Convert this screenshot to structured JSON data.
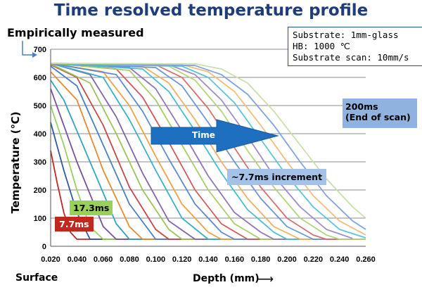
{
  "header": {
    "title": "Time resolved temperature profile",
    "empirical": "Empirically  measured"
  },
  "info_box": {
    "line1": "Substrate: 1mm-glass",
    "line2": "HB: 1000 ℃",
    "line3": "Substrate scan: 10mm/s"
  },
  "annotations": {
    "end_scan_1": "200ms",
    "end_scan_2": "(End of scan)",
    "increment": "~7.7ms increment",
    "time": "Time",
    "label_17": "17.3ms",
    "label_7": "7.7ms"
  },
  "footer": {
    "surface": "Surface",
    "depth": "Depth (mm)"
  },
  "chart_data": {
    "type": "line",
    "title": "Time resolved temperature profile",
    "xlabel": "Depth (mm)",
    "ylabel": "Temperature (℃)",
    "xlim": [
      0.02,
      0.26
    ],
    "ylim": [
      0,
      700
    ],
    "x_ticks": [
      "0.020",
      "0.040",
      "0.060",
      "0.080",
      "0.100",
      "0.120",
      "0.140",
      "0.160",
      "0.180",
      "0.200",
      "0.220",
      "0.240",
      "0.260"
    ],
    "y_ticks": [
      "0",
      "100",
      "200",
      "300",
      "400",
      "500",
      "600",
      "700"
    ],
    "grid": "horizontal",
    "baseline_temperature": 25,
    "peak_temperature": 650,
    "series_note": "curves at ~7.7ms increments from 7.7ms to 200ms",
    "series": [
      {
        "name": "7.7ms",
        "color": "#c0281f",
        "x": [
          0.02,
          0.025,
          0.03,
          0.035,
          0.04
        ],
        "y": [
          340,
          225,
          120,
          50,
          25
        ]
      },
      {
        "name": "",
        "color": "#2e5a9c",
        "x": [
          0.02,
          0.03,
          0.04,
          0.05
        ],
        "y": [
          440,
          270,
          120,
          25
        ]
      },
      {
        "name": "17.3ms",
        "color": "#99d05a",
        "x": [
          0.02,
          0.03,
          0.04,
          0.05,
          0.06
        ],
        "y": [
          500,
          360,
          200,
          70,
          25
        ]
      },
      {
        "name": "",
        "color": "#7a4e9c",
        "x": [
          0.02,
          0.04,
          0.06,
          0.07
        ],
        "y": [
          560,
          300,
          70,
          25
        ]
      },
      {
        "name": "",
        "color": "#34a3bd",
        "x": [
          0.02,
          0.03,
          0.05,
          0.07,
          0.08
        ],
        "y": [
          590,
          520,
          300,
          80,
          25
        ]
      },
      {
        "name": "",
        "color": "#e88b2e",
        "x": [
          0.02,
          0.04,
          0.06,
          0.08,
          0.09
        ],
        "y": [
          620,
          520,
          270,
          70,
          25
        ]
      },
      {
        "name": "",
        "color": "#4a7ec2",
        "x": [
          0.02,
          0.04,
          0.06,
          0.08,
          0.1
        ],
        "y": [
          640,
          570,
          360,
          150,
          25
        ]
      },
      {
        "name": "",
        "color": "#c54848",
        "x": [
          0.02,
          0.04,
          0.06,
          0.08,
          0.1,
          0.11
        ],
        "y": [
          645,
          600,
          430,
          210,
          60,
          25
        ]
      },
      {
        "name": "",
        "color": "#9bc45a",
        "x": [
          0.02,
          0.05,
          0.07,
          0.09,
          0.11,
          0.12
        ],
        "y": [
          648,
          580,
          400,
          200,
          60,
          25
        ]
      },
      {
        "name": "",
        "color": "#8066a8",
        "x": [
          0.02,
          0.05,
          0.07,
          0.09,
          0.11,
          0.13
        ],
        "y": [
          650,
          610,
          460,
          260,
          90,
          25
        ]
      },
      {
        "name": "",
        "color": "#3ab0c8",
        "x": [
          0.02,
          0.06,
          0.08,
          0.1,
          0.12,
          0.14
        ],
        "y": [
          650,
          600,
          450,
          270,
          100,
          25
        ]
      },
      {
        "name": "",
        "color": "#f0a045",
        "x": [
          0.02,
          0.06,
          0.08,
          0.1,
          0.12,
          0.14,
          0.15
        ],
        "y": [
          650,
          620,
          500,
          320,
          150,
          50,
          25
        ]
      },
      {
        "name": "",
        "color": "#5b8ad0",
        "x": [
          0.02,
          0.07,
          0.09,
          0.11,
          0.13,
          0.15,
          0.16
        ],
        "y": [
          650,
          610,
          480,
          310,
          150,
          50,
          25
        ]
      },
      {
        "name": "",
        "color": "#d05a5a",
        "x": [
          0.02,
          0.07,
          0.09,
          0.11,
          0.13,
          0.15,
          0.17
        ],
        "y": [
          650,
          630,
          530,
          370,
          200,
          80,
          25
        ]
      },
      {
        "name": "",
        "color": "#a8cc6a",
        "x": [
          0.02,
          0.08,
          0.1,
          0.12,
          0.14,
          0.16,
          0.18
        ],
        "y": [
          650,
          625,
          520,
          360,
          200,
          80,
          25
        ]
      },
      {
        "name": "",
        "color": "#9078b8",
        "x": [
          0.02,
          0.08,
          0.1,
          0.12,
          0.14,
          0.16,
          0.18,
          0.19
        ],
        "y": [
          650,
          635,
          560,
          410,
          250,
          120,
          50,
          25
        ]
      },
      {
        "name": "",
        "color": "#48bcd0",
        "x": [
          0.02,
          0.09,
          0.11,
          0.13,
          0.15,
          0.17,
          0.19,
          0.2
        ],
        "y": [
          650,
          630,
          550,
          410,
          260,
          130,
          50,
          25
        ]
      },
      {
        "name": "",
        "color": "#f0b060",
        "x": [
          0.02,
          0.09,
          0.11,
          0.13,
          0.15,
          0.17,
          0.19,
          0.21
        ],
        "y": [
          650,
          640,
          580,
          450,
          300,
          170,
          70,
          25
        ]
      },
      {
        "name": "",
        "color": "#6a96d8",
        "x": [
          0.02,
          0.1,
          0.12,
          0.14,
          0.16,
          0.18,
          0.2,
          0.22
        ],
        "y": [
          650,
          635,
          570,
          440,
          300,
          170,
          70,
          25
        ]
      },
      {
        "name": "",
        "color": "#d87070",
        "x": [
          0.02,
          0.1,
          0.12,
          0.14,
          0.16,
          0.18,
          0.2,
          0.22,
          0.23
        ],
        "y": [
          650,
          645,
          600,
          490,
          350,
          210,
          100,
          40,
          25
        ]
      },
      {
        "name": "",
        "color": "#b4d47c",
        "x": [
          0.02,
          0.11,
          0.13,
          0.15,
          0.17,
          0.19,
          0.21,
          0.23,
          0.24
        ],
        "y": [
          650,
          640,
          590,
          480,
          340,
          210,
          100,
          40,
          25
        ]
      },
      {
        "name": "",
        "color": "#a08cc8",
        "x": [
          0.02,
          0.11,
          0.13,
          0.15,
          0.17,
          0.19,
          0.21,
          0.23,
          0.25
        ],
        "y": [
          650,
          645,
          610,
          520,
          390,
          250,
          140,
          60,
          28
        ]
      },
      {
        "name": "",
        "color": "#5cc4d8",
        "x": [
          0.02,
          0.12,
          0.14,
          0.16,
          0.18,
          0.2,
          0.22,
          0.24,
          0.26
        ],
        "y": [
          650,
          640,
          600,
          510,
          380,
          250,
          140,
          60,
          30
        ]
      },
      {
        "name": "",
        "color": "#f4bc78",
        "x": [
          0.02,
          0.12,
          0.14,
          0.16,
          0.18,
          0.2,
          0.22,
          0.24,
          0.26
        ],
        "y": [
          650,
          645,
          620,
          550,
          430,
          300,
          180,
          90,
          40
        ]
      },
      {
        "name": "",
        "color": "#7ea4e0",
        "x": [
          0.02,
          0.13,
          0.15,
          0.17,
          0.19,
          0.21,
          0.23,
          0.25,
          0.26
        ],
        "y": [
          650,
          642,
          610,
          540,
          430,
          300,
          180,
          90,
          60
        ]
      },
      {
        "name": "200ms",
        "color": "#c8e0a8",
        "x": [
          0.02,
          0.13,
          0.15,
          0.17,
          0.19,
          0.21,
          0.23,
          0.25,
          0.26
        ],
        "y": [
          650,
          648,
          630,
          580,
          480,
          360,
          240,
          140,
          100
        ]
      }
    ]
  }
}
